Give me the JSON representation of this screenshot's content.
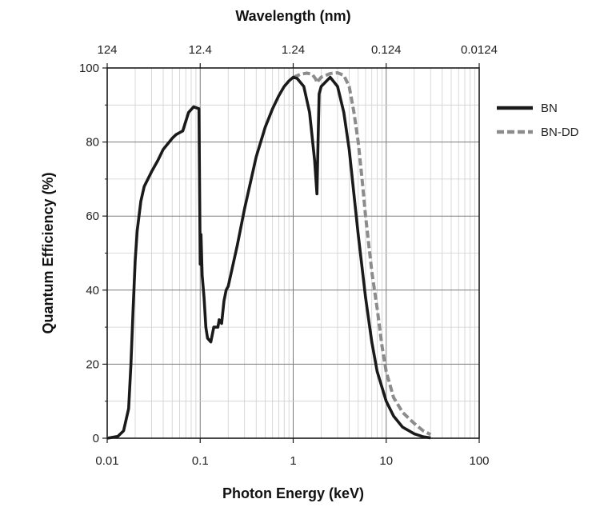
{
  "chart_data": {
    "type": "line",
    "xlabel": "Photon Energy (keV)",
    "ylabel": "Quantum Efficiency (%)",
    "x2label": "Wavelength (nm)",
    "xscale": "log",
    "xlim": [
      0.01,
      100
    ],
    "ylim": [
      0,
      100
    ],
    "grid": true,
    "legend_position": "right",
    "x_ticks": [
      {
        "value": 0.01,
        "label": "0.01"
      },
      {
        "value": 0.1,
        "label": "0.1"
      },
      {
        "value": 1,
        "label": "1"
      },
      {
        "value": 10,
        "label": "10"
      },
      {
        "value": 100,
        "label": "100"
      }
    ],
    "x2_ticks": [
      {
        "value": 0.01,
        "label": "124"
      },
      {
        "value": 0.1,
        "label": "12.4"
      },
      {
        "value": 1,
        "label": "1.24"
      },
      {
        "value": 10,
        "label": "0.124"
      },
      {
        "value": 100,
        "label": "0.0124"
      }
    ],
    "y_ticks": [
      {
        "value": 0,
        "label": "0"
      },
      {
        "value": 20,
        "label": "20"
      },
      {
        "value": 40,
        "label": "40"
      },
      {
        "value": 60,
        "label": "60"
      },
      {
        "value": 80,
        "label": "80"
      },
      {
        "value": 100,
        "label": "100"
      }
    ],
    "series": [
      {
        "name": "BN",
        "color": "#1a1a1a",
        "style": "solid",
        "points": [
          [
            0.01,
            0
          ],
          [
            0.013,
            0.5
          ],
          [
            0.015,
            2
          ],
          [
            0.017,
            8
          ],
          [
            0.018,
            20
          ],
          [
            0.019,
            35
          ],
          [
            0.02,
            48
          ],
          [
            0.021,
            56
          ],
          [
            0.023,
            64
          ],
          [
            0.025,
            68
          ],
          [
            0.03,
            72
          ],
          [
            0.035,
            75
          ],
          [
            0.04,
            78
          ],
          [
            0.05,
            81
          ],
          [
            0.055,
            82
          ],
          [
            0.065,
            83
          ],
          [
            0.075,
            88
          ],
          [
            0.085,
            89.5
          ],
          [
            0.097,
            89
          ],
          [
            0.098,
            75
          ],
          [
            0.1,
            47
          ],
          [
            0.102,
            55
          ],
          [
            0.105,
            44
          ],
          [
            0.11,
            38
          ],
          [
            0.115,
            30
          ],
          [
            0.12,
            27
          ],
          [
            0.13,
            26
          ],
          [
            0.14,
            30
          ],
          [
            0.155,
            30
          ],
          [
            0.16,
            32
          ],
          [
            0.17,
            31
          ],
          [
            0.18,
            37
          ],
          [
            0.19,
            40
          ],
          [
            0.2,
            41
          ],
          [
            0.25,
            52
          ],
          [
            0.3,
            62
          ],
          [
            0.4,
            76
          ],
          [
            0.5,
            84
          ],
          [
            0.6,
            89
          ],
          [
            0.7,
            92.5
          ],
          [
            0.8,
            95
          ],
          [
            0.9,
            96.5
          ],
          [
            1.0,
            97.5
          ],
          [
            1.1,
            97.2
          ],
          [
            1.3,
            95
          ],
          [
            1.5,
            88
          ],
          [
            1.7,
            75
          ],
          [
            1.8,
            66
          ],
          [
            1.85,
            80
          ],
          [
            1.9,
            93
          ],
          [
            2.0,
            95
          ],
          [
            2.5,
            97.5
          ],
          [
            3.0,
            95
          ],
          [
            3.5,
            88
          ],
          [
            4.0,
            78
          ],
          [
            5.0,
            55
          ],
          [
            6.0,
            38
          ],
          [
            7.0,
            26
          ],
          [
            8.0,
            18
          ],
          [
            10.0,
            10
          ],
          [
            12.0,
            6
          ],
          [
            15.0,
            3
          ],
          [
            20.0,
            1.2
          ],
          [
            25.0,
            0.4
          ],
          [
            30.0,
            0.1
          ]
        ]
      },
      {
        "name": "BN-DD",
        "color": "#8c8c8c",
        "style": "dashed",
        "points": [
          [
            1.0,
            97.5
          ],
          [
            1.2,
            98.3
          ],
          [
            1.4,
            98.6
          ],
          [
            1.6,
            98.3
          ],
          [
            1.75,
            97
          ],
          [
            1.8,
            96
          ],
          [
            1.85,
            96.5
          ],
          [
            2.0,
            97.5
          ],
          [
            2.5,
            98.5
          ],
          [
            3.0,
            98.7
          ],
          [
            3.5,
            98
          ],
          [
            4.0,
            95
          ],
          [
            4.5,
            88
          ],
          [
            5.0,
            80
          ],
          [
            5.5,
            70
          ],
          [
            6.0,
            60
          ],
          [
            7.0,
            45
          ],
          [
            8.0,
            35
          ],
          [
            9.0,
            25
          ],
          [
            10.0,
            18
          ],
          [
            12.0,
            11
          ],
          [
            15.0,
            7
          ],
          [
            20.0,
            4
          ],
          [
            25.0,
            2
          ],
          [
            30.0,
            1
          ]
        ]
      }
    ]
  }
}
